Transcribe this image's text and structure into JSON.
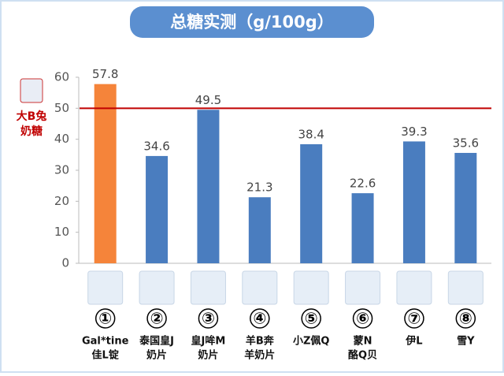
{
  "chart_data": {
    "type": "bar",
    "title": "总糖实测（g/100g）",
    "categories": [
      [
        "Gal*tine",
        "佳L锭"
      ],
      [
        "泰国皇J",
        "奶片"
      ],
      [
        "皇J哞M",
        "奶片"
      ],
      [
        "羊B奔",
        "羊奶片"
      ],
      [
        "小Z佩Q"
      ],
      [
        "蒙N",
        "酪Q贝"
      ],
      [
        "伊L"
      ],
      [
        "雪Y"
      ]
    ],
    "category_numbers": [
      "①",
      "②",
      "③",
      "④",
      "⑤",
      "⑥",
      "⑦",
      "⑧"
    ],
    "values": [
      57.8,
      34.6,
      49.5,
      21.3,
      38.4,
      22.6,
      39.3,
      35.6
    ],
    "colors": [
      "#f5843a",
      "#4a7dbf",
      "#4a7dbf",
      "#4a7dbf",
      "#4a7dbf",
      "#4a7dbf",
      "#4a7dbf",
      "#4a7dbf"
    ],
    "ylim": [
      0,
      60
    ],
    "yticks": [
      0,
      10,
      20,
      30,
      40,
      50,
      60
    ],
    "grid": false,
    "reference_line": {
      "value": 50,
      "color": "#c00000",
      "label": [
        "大B兔",
        "奶糖"
      ]
    }
  }
}
